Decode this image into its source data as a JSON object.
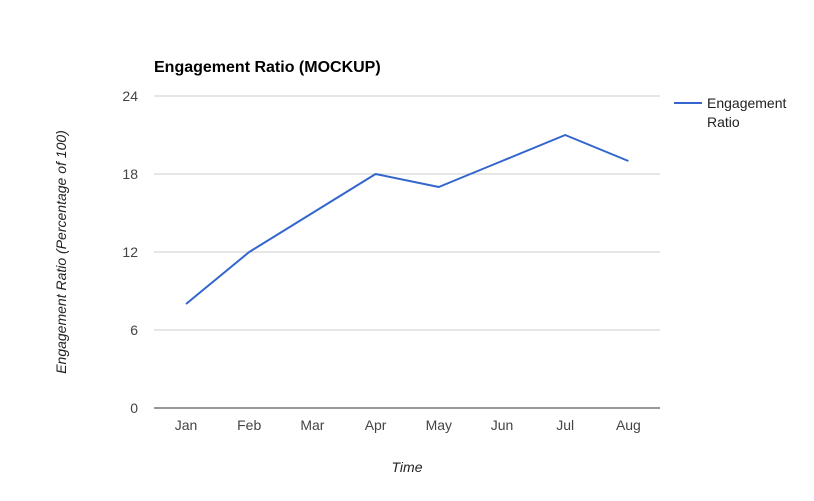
{
  "chart_data": {
    "type": "line",
    "title": "Engagement Ratio (MOCKUP)",
    "xlabel": "Time",
    "ylabel": "Engagement Ratio (Percentage of 100)",
    "categories": [
      "Jan",
      "Feb",
      "Mar",
      "Apr",
      "May",
      "Jun",
      "Jul",
      "Aug"
    ],
    "series": [
      {
        "name": "Engagement Ratio",
        "values": [
          8,
          12,
          15,
          18,
          17,
          19,
          21,
          19
        ],
        "color": "#3366cc"
      }
    ],
    "ylim": [
      0,
      24
    ],
    "yticks": [
      0,
      6,
      12,
      18,
      24
    ],
    "grid": true,
    "legend": {
      "position": "right",
      "lines": [
        "Engagement",
        "Ratio"
      ]
    }
  }
}
